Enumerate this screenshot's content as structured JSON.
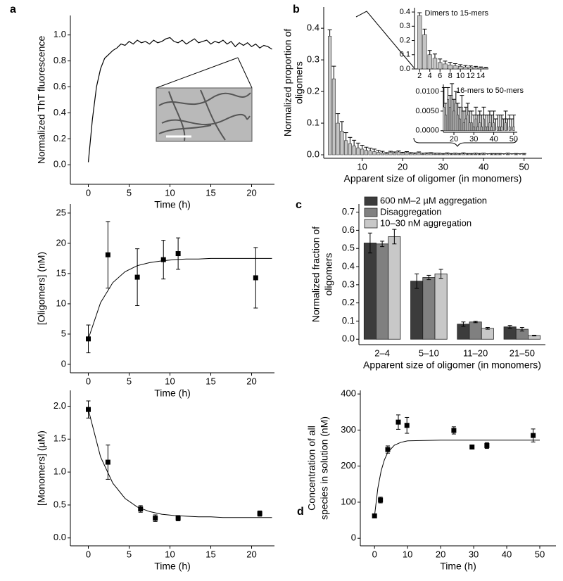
{
  "chart_data": [
    {
      "type": "line",
      "panel": "a",
      "xlabel": "Time (h)",
      "ylabel": "Normalized ThT fluorescence",
      "xlim": [
        -2.2,
        22.8
      ],
      "ylim": [
        -0.15,
        1.15
      ],
      "xticks": [
        0,
        5,
        10,
        15,
        20
      ],
      "yticks": [
        {
          "value": 0,
          "label": "0.0"
        },
        0.2,
        0.4,
        0.6,
        0.8,
        {
          "value": 1,
          "label": "1.0"
        }
      ],
      "color": "#000000",
      "x": [
        0,
        0.5,
        1,
        1.5,
        2,
        2.5,
        3,
        3.5,
        4,
        4.5,
        5,
        5.5,
        6,
        6.5,
        7,
        7.5,
        8,
        8.5,
        9,
        9.5,
        10,
        10.5,
        11,
        11.5,
        12,
        12.5,
        13,
        13.5,
        14,
        14.5,
        15,
        15.5,
        16,
        16.5,
        17,
        17.5,
        18,
        18.5,
        19,
        19.5,
        20,
        20.5,
        21,
        21.5,
        22,
        22.5
      ],
      "values": [
        0.02,
        0.35,
        0.6,
        0.74,
        0.82,
        0.85,
        0.88,
        0.9,
        0.93,
        0.92,
        0.95,
        0.93,
        0.96,
        0.94,
        0.95,
        0.93,
        0.96,
        0.94,
        0.95,
        0.97,
        0.98,
        0.95,
        0.94,
        0.96,
        0.93,
        0.95,
        0.97,
        0.94,
        0.95,
        0.96,
        0.93,
        0.95,
        0.94,
        0.96,
        0.93,
        0.95,
        0.91,
        0.94,
        0.92,
        0.94,
        0.91,
        0.93,
        0.9,
        0.92,
        0.91,
        0.89
      ]
    },
    {
      "type": "scatter",
      "xlabel": "Time (h)",
      "ylabel": "[Oligomers] (nM)",
      "xlim": [
        -2.2,
        22.8
      ],
      "ylim": [
        -1.4,
        26.5
      ],
      "xticks": [
        0,
        5,
        10,
        15,
        20
      ],
      "yticks": [
        0,
        5,
        10,
        15,
        20,
        25
      ],
      "points": {
        "x": [
          0,
          2.4,
          6,
          9.2,
          11,
          20.5
        ],
        "values": [
          4.2,
          18.1,
          14.4,
          17.3,
          18.3,
          14.3
        ],
        "errors": [
          2.3,
          5.5,
          4.7,
          3.2,
          2.6,
          5
        ]
      },
      "fit": {
        "x": [
          0,
          1.5,
          3,
          4.5,
          6,
          7.5,
          9,
          10.5,
          12,
          13.5,
          15,
          16.5,
          18,
          19.5,
          21,
          22.5
        ],
        "values": [
          4.2,
          10.2,
          13.5,
          15.3,
          16.3,
          16.8,
          17.1,
          17.3,
          17.4,
          17.4,
          17.5,
          17.5,
          17.5,
          17.5,
          17.5,
          17.5
        ]
      }
    },
    {
      "type": "scatter",
      "xlabel": "Time (h)",
      "ylabel": "[Monomers] (µM)",
      "xlim": [
        -2.2,
        22.8
      ],
      "ylim": [
        -0.12,
        2.24
      ],
      "xticks": [
        0,
        5,
        10,
        15,
        20
      ],
      "yticks": [
        {
          "value": 0,
          "label": "0.0"
        },
        0.5,
        {
          "value": 1,
          "label": "1.0"
        },
        1.5,
        {
          "value": 2,
          "label": "2.0"
        }
      ],
      "points": {
        "x": [
          0,
          2.4,
          6.4,
          8.2,
          11,
          21
        ],
        "values": [
          1.95,
          1.15,
          0.44,
          0.3,
          0.3,
          0.37
        ],
        "errors": [
          0.13,
          0.26,
          0.05,
          0.05,
          0.04,
          0.04
        ]
      },
      "fit": {
        "x": [
          0,
          1.5,
          3,
          4.5,
          6,
          7.5,
          9,
          10.5,
          12,
          13.5,
          15,
          16.5,
          18,
          19.5,
          21,
          22.5
        ],
        "values": [
          1.95,
          1.23,
          0.83,
          0.6,
          0.47,
          0.4,
          0.36,
          0.34,
          0.33,
          0.32,
          0.32,
          0.31,
          0.31,
          0.31,
          0.31,
          0.31
        ]
      }
    },
    {
      "type": "bar",
      "panel": "b",
      "xlabel": "Apparent size of oligomer (in monomers)",
      "ylabel": [
        "Normalized proportion of",
        "oligomers"
      ],
      "xlim": [
        0.5,
        54.4
      ],
      "ylim": [
        -0.011,
        0.467
      ],
      "xticks": [
        10,
        20,
        30,
        40,
        50
      ],
      "yticks": [
        {
          "value": 0,
          "label": "0.0"
        },
        0.1,
        0.2,
        0.3,
        0.4
      ],
      "color": "#c4c4c4",
      "x": [
        2,
        3,
        4,
        5,
        6,
        7,
        8,
        9,
        10,
        11,
        12,
        13,
        14,
        15,
        16,
        17,
        18,
        19,
        20,
        21,
        22,
        23,
        24,
        25,
        26,
        27,
        28,
        29,
        30,
        31,
        32,
        33,
        34,
        35,
        36,
        37,
        38,
        39,
        40,
        41,
        42,
        43,
        44,
        45,
        46,
        47,
        48,
        49,
        50
      ],
      "values": [
        0.375,
        0.24,
        0.1,
        0.075,
        0.045,
        0.035,
        0.028,
        0.022,
        0.018,
        0.014,
        0.012,
        0.01,
        0.008,
        0.006,
        0.004,
        0.008,
        0.006,
        0.009,
        0.005,
        0.007,
        0.004,
        0.003,
        0.006,
        0.002,
        0.003,
        0.004,
        0.002,
        0.002,
        0.001,
        0.003,
        0.001,
        0.002,
        0.001,
        0.003,
        0.001,
        0.001,
        0.002,
        0.001,
        0.002,
        0,
        0.001,
        0.001,
        0.001,
        0,
        0.002,
        0,
        0.001,
        0,
        0.001
      ],
      "errors": [
        0.02,
        0.04,
        0.03,
        0.03,
        0.025,
        0.02,
        0.018,
        0.015,
        0.012,
        0.01,
        0.009,
        0.008,
        0.006,
        0.005,
        0.003,
        0.003,
        0.003,
        0.003,
        0.003,
        0.003,
        0.003,
        0.003,
        0.003,
        0.003,
        0.003,
        0.003,
        0.003,
        0.003,
        0.003,
        0.003,
        0.003,
        0.003,
        0.003,
        0.003,
        0.003,
        0.003,
        0.003,
        0.003,
        0.003,
        0.003,
        0.003,
        0.003,
        0.003,
        0.003,
        0.003,
        0.003,
        0.003,
        0.003,
        0.003
      ],
      "insets": [
        {
          "title": "Dimers to 15-mers",
          "xlim": [
            1,
            15.5
          ],
          "ylim": [
            0,
            0.43
          ],
          "xticks": [
            2,
            4,
            6,
            8,
            10,
            12,
            14
          ],
          "yticks": [
            {
              "value": 0,
              "label": "0.0"
            },
            0.1,
            0.2,
            0.3,
            0.4
          ]
        },
        {
          "title": "16-mers to 50-mers",
          "xlim": [
            14.7,
            51.8
          ],
          "ylim": [
            -0.0004,
            0.0118
          ],
          "xticks": [
            20,
            30,
            40,
            50
          ],
          "yticks": [
            {
              "value": 0,
              "label": "0.0000"
            },
            {
              "value": 0.005,
              "label": "0.0050"
            },
            {
              "value": 0.01,
              "label": "0.0100"
            }
          ]
        }
      ]
    },
    {
      "type": "bar",
      "panel": "c",
      "xlabel": "Apparent size of oligomer (in monomers)",
      "ylabel": [
        "Normalized fraction of",
        "oligomers"
      ],
      "ylim": [
        -0.03,
        0.745
      ],
      "yticks": [
        {
          "value": 0,
          "label": "0.0"
        },
        0.1,
        0.2,
        0.3,
        0.4,
        0.5,
        0.6,
        0.7
      ],
      "categories": [
        "2–4",
        "5–10",
        "11–20",
        "21–50"
      ],
      "legend": "upper left",
      "series": [
        {
          "name": "600 nM–2 µM aggregation",
          "color": "#3c3c3c",
          "values": [
            0.53,
            0.32,
            0.083,
            0.068
          ],
          "errors": [
            0.055,
            0.04,
            0.012,
            0.008
          ]
        },
        {
          "name": "Disaggregation",
          "color": "#808080",
          "values": [
            0.525,
            0.34,
            0.095,
            0.055
          ],
          "errors": [
            0.015,
            0.012,
            0.004,
            0.01
          ]
        },
        {
          "name": "10–30 nM aggregation",
          "color": "#c8c8c8",
          "values": [
            0.565,
            0.36,
            0.06,
            0.02
          ],
          "errors": [
            0.04,
            0.025,
            0.005,
            0.002
          ]
        }
      ]
    },
    {
      "type": "scatter",
      "panel": "d",
      "xlabel": "Time (h)",
      "ylabel": [
        "Concentration of all",
        "species in solution (nM)"
      ],
      "xlim": [
        -4.3,
        54.9
      ],
      "ylim": [
        -21,
        410
      ],
      "xticks": [
        0,
        10,
        20,
        30,
        40,
        50
      ],
      "yticks": [
        0,
        100,
        200,
        300,
        400
      ],
      "points": {
        "x": [
          0,
          1.8,
          4,
          7.2,
          9.8,
          24,
          29.5,
          34,
          48
        ],
        "values": [
          62,
          106,
          246,
          322,
          313,
          299,
          253,
          257,
          285
        ],
        "errors": [
          4,
          8,
          10,
          20,
          22,
          10,
          5,
          8,
          18
        ]
      },
      "fit": {
        "x": [
          0,
          1,
          2,
          3,
          4,
          6,
          8,
          10,
          15,
          20,
          30,
          40,
          50
        ],
        "values": [
          62,
          139,
          187,
          218,
          238,
          258,
          266,
          270,
          271,
          272,
          272,
          272,
          272
        ]
      }
    }
  ]
}
